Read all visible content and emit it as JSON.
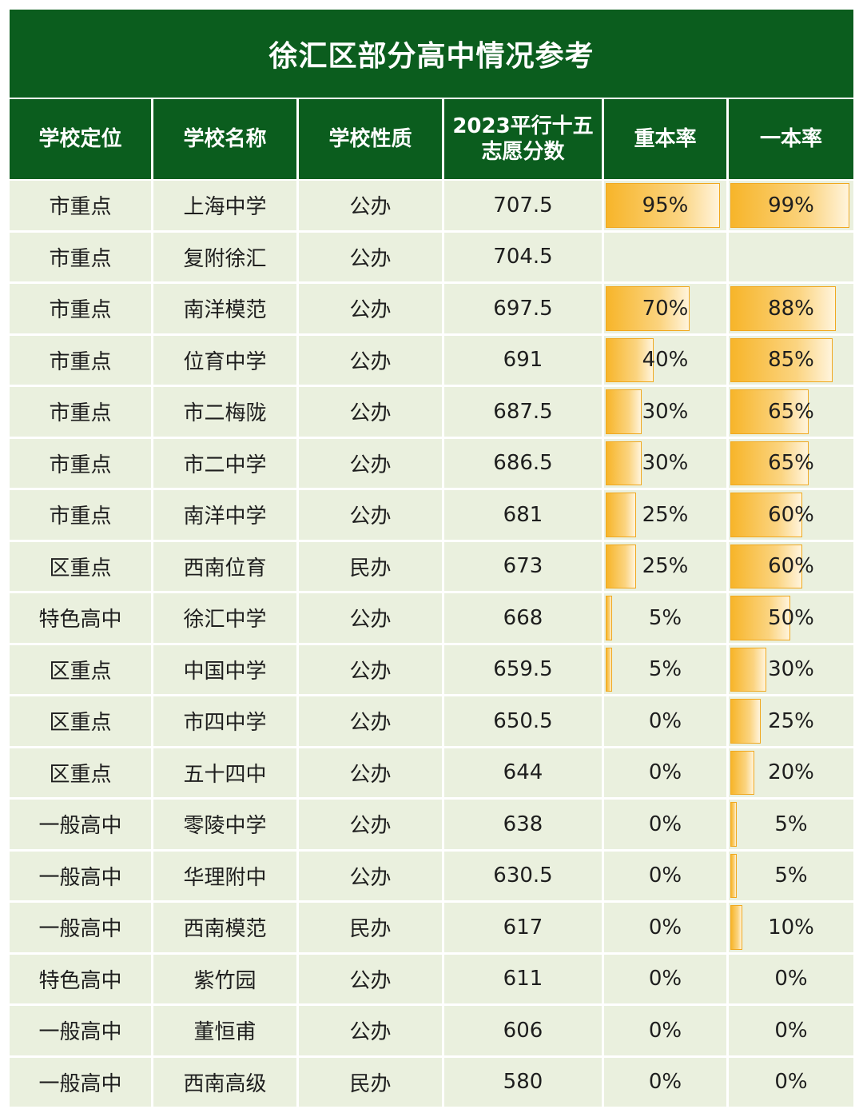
{
  "title": "徐汇区部分高中情况参考",
  "headers": [
    "学校定位",
    "学校名称",
    "学校性质",
    "2023平行十五志愿分数",
    "重本率",
    "一本率"
  ],
  "chart_data": {
    "type": "table",
    "title": "徐汇区部分高中情况参考",
    "columns": [
      "学校定位",
      "学校名称",
      "学校性质",
      "2023平行十五志愿分数",
      "重本率",
      "一本率"
    ],
    "rows": [
      {
        "pos": "市重点",
        "name": "上海中学",
        "type": "公办",
        "score": "707.5",
        "zb": "95%",
        "yb": "99%",
        "zb_v": 95,
        "yb_v": 99
      },
      {
        "pos": "市重点",
        "name": "复附徐汇",
        "type": "公办",
        "score": "704.5",
        "zb": "",
        "yb": "",
        "zb_v": 0,
        "yb_v": 0
      },
      {
        "pos": "市重点",
        "name": "南洋模范",
        "type": "公办",
        "score": "697.5",
        "zb": "70%",
        "yb": "88%",
        "zb_v": 70,
        "yb_v": 88
      },
      {
        "pos": "市重点",
        "name": "位育中学",
        "type": "公办",
        "score": "691",
        "zb": "40%",
        "yb": "85%",
        "zb_v": 40,
        "yb_v": 85
      },
      {
        "pos": "市重点",
        "name": "市二梅陇",
        "type": "公办",
        "score": "687.5",
        "zb": "30%",
        "yb": "65%",
        "zb_v": 30,
        "yb_v": 65
      },
      {
        "pos": "市重点",
        "name": "市二中学",
        "type": "公办",
        "score": "686.5",
        "zb": "30%",
        "yb": "65%",
        "zb_v": 30,
        "yb_v": 65
      },
      {
        "pos": "市重点",
        "name": "南洋中学",
        "type": "公办",
        "score": "681",
        "zb": "25%",
        "yb": "60%",
        "zb_v": 25,
        "yb_v": 60
      },
      {
        "pos": "区重点",
        "name": "西南位育",
        "type": "民办",
        "score": "673",
        "zb": "25%",
        "yb": "60%",
        "zb_v": 25,
        "yb_v": 60
      },
      {
        "pos": "特色高中",
        "name": "徐汇中学",
        "type": "公办",
        "score": "668",
        "zb": "5%",
        "yb": "50%",
        "zb_v": 5,
        "yb_v": 50
      },
      {
        "pos": "区重点",
        "name": "中国中学",
        "type": "公办",
        "score": "659.5",
        "zb": "5%",
        "yb": "30%",
        "zb_v": 5,
        "yb_v": 30
      },
      {
        "pos": "区重点",
        "name": "市四中学",
        "type": "公办",
        "score": "650.5",
        "zb": "0%",
        "yb": "25%",
        "zb_v": 0,
        "yb_v": 25
      },
      {
        "pos": "区重点",
        "name": "五十四中",
        "type": "公办",
        "score": "644",
        "zb": "0%",
        "yb": "20%",
        "zb_v": 0,
        "yb_v": 20
      },
      {
        "pos": "一般高中",
        "name": "零陵中学",
        "type": "公办",
        "score": "638",
        "zb": "0%",
        "yb": "5%",
        "zb_v": 0,
        "yb_v": 5
      },
      {
        "pos": "一般高中",
        "name": "华理附中",
        "type": "公办",
        "score": "630.5",
        "zb": "0%",
        "yb": "5%",
        "zb_v": 0,
        "yb_v": 5
      },
      {
        "pos": "一般高中",
        "name": "西南模范",
        "type": "民办",
        "score": "617",
        "zb": "0%",
        "yb": "10%",
        "zb_v": 0,
        "yb_v": 10
      },
      {
        "pos": "特色高中",
        "name": "紫竹园",
        "type": "公办",
        "score": "611",
        "zb": "0%",
        "yb": "0%",
        "zb_v": 0,
        "yb_v": 0
      },
      {
        "pos": "一般高中",
        "name": "董恒甫",
        "type": "公办",
        "score": "606",
        "zb": "0%",
        "yb": "0%",
        "zb_v": 0,
        "yb_v": 0
      },
      {
        "pos": "一般高中",
        "name": "西南高级",
        "type": "民办",
        "score": "580",
        "zb": "0%",
        "yb": "0%",
        "zb_v": 0,
        "yb_v": 0
      }
    ]
  },
  "colors": {
    "header_bg": "#0b5d1e",
    "row_bg": "#eaf0de",
    "bar_fill": "#f7b52a",
    "bar_border": "#f0a81f"
  }
}
